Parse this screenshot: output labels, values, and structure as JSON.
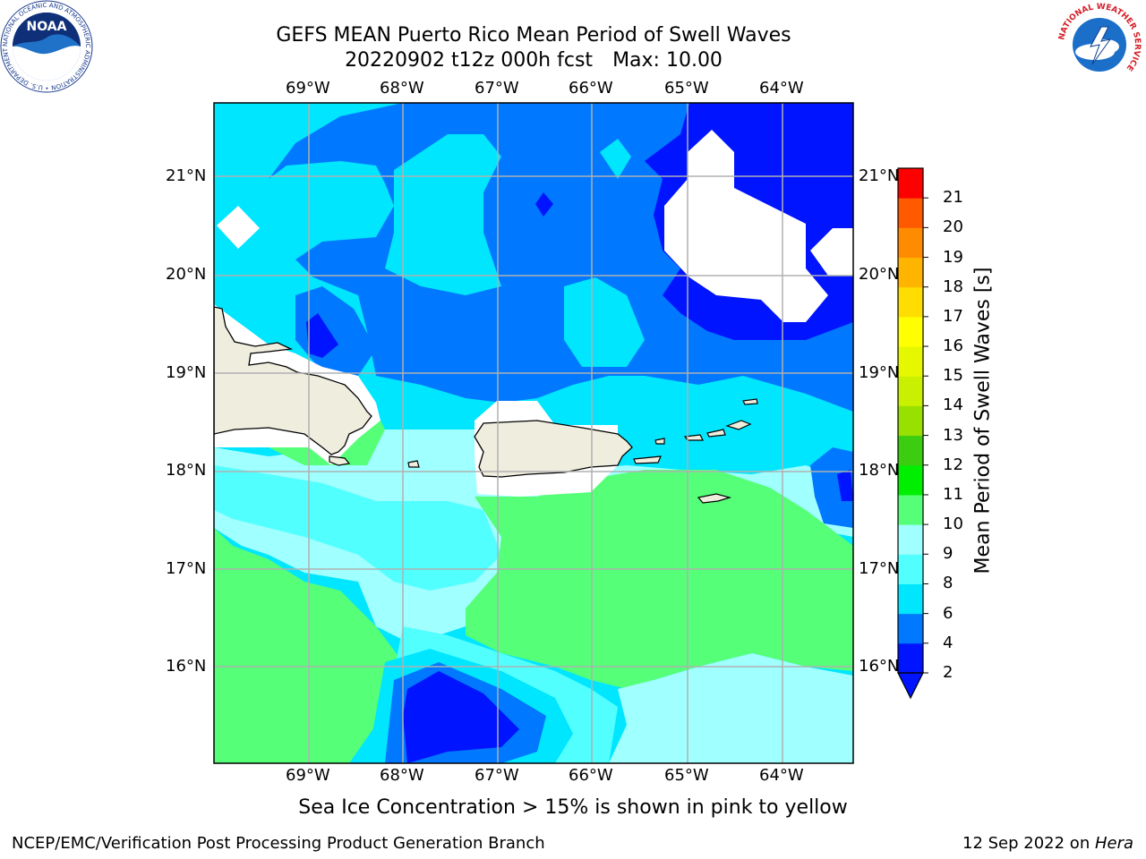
{
  "header": {
    "title_line1": "GEFS MEAN Puerto Rico Mean Period of Swell Waves",
    "title_date": "20220902 t12z 000h fcst",
    "title_max": "Max: 10.00"
  },
  "map": {
    "lon_labels": [
      "69°W",
      "68°W",
      "67°W",
      "66°W",
      "65°W",
      "64°W"
    ],
    "lat_labels": [
      "21°N",
      "20°N",
      "19°N",
      "18°N",
      "17°N",
      "16°N"
    ],
    "colors": {
      "land": "#eeedde",
      "grid": "#b0b0b0",
      "missing": "#ffffff"
    }
  },
  "colorbar": {
    "title": "Mean Period of Swell Waves [s]",
    "tick_labels": [
      "2",
      "4",
      "6",
      "8",
      "9",
      "10",
      "11",
      "12",
      "13",
      "14",
      "15",
      "16",
      "17",
      "18",
      "19",
      "20",
      "21"
    ],
    "level_colors": [
      "#0014ff",
      "#0078ff",
      "#00e6ff",
      "#52ffff",
      "#a0ffff",
      "#55ff78",
      "#00ee00",
      "#3ccd10",
      "#98e000",
      "#c8f000",
      "#e6f800",
      "#ffff00",
      "#ffdd00",
      "#ffb400",
      "#ff8c00",
      "#ff5a00",
      "#ff0000"
    ],
    "extend": "min"
  },
  "footer": {
    "note": "Sea Ice Concentration > 15% is shown in pink to yellow",
    "left": "NCEP/EMC/Verification Post Processing Product Generation Branch",
    "right_prefix": "12 Sep 2022 on ",
    "right_host": "Hera"
  },
  "logos": {
    "noaa_text": "NOAA",
    "noaa_ring_text": "NATIONAL OCEANIC AND ATMOSPHERIC ADMINISTRATION • U.S. DEPARTMENT OF COMMERCE",
    "nws_ring_text": "NATIONAL WEATHER SERVICE"
  }
}
